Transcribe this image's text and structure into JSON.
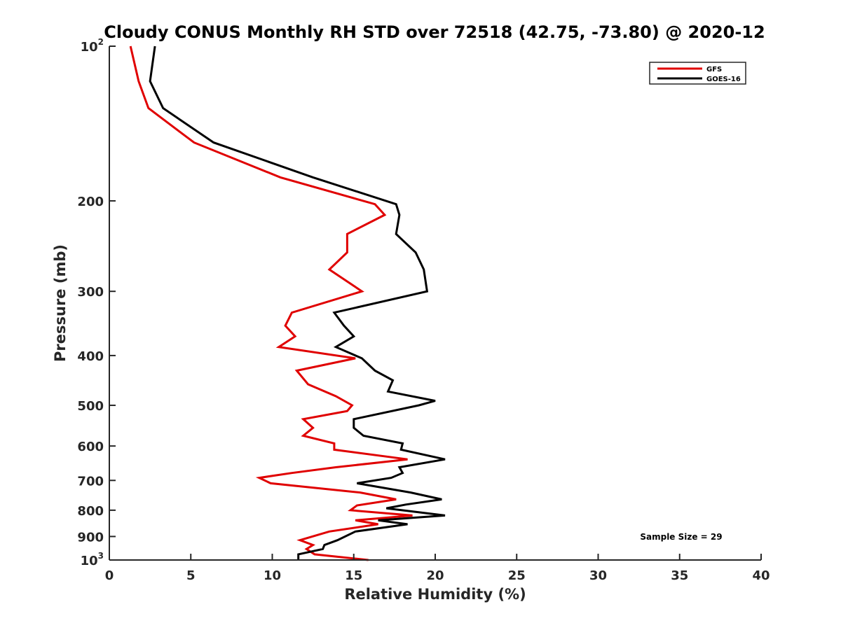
{
  "chart_data": {
    "type": "line",
    "title": "Cloudy CONUS Monthly RH STD over 72518 (42.75, -73.80) @ 2020-12",
    "xlabel": "Relative Humidity (%)",
    "ylabel": "Pressure (mb)",
    "xlim": [
      0,
      40
    ],
    "ylim": [
      100,
      1000
    ],
    "y_scale": "log",
    "y_reversed": true,
    "grid": false,
    "legend_position": "top-right",
    "x_ticks": [
      0,
      5,
      10,
      15,
      20,
      25,
      30,
      35,
      40
    ],
    "y_ticks": [
      {
        "value": 100,
        "base": "10",
        "exp": "2"
      },
      {
        "value": 200,
        "base": "200",
        "exp": ""
      },
      {
        "value": 300,
        "base": "300",
        "exp": ""
      },
      {
        "value": 400,
        "base": "400",
        "exp": ""
      },
      {
        "value": 500,
        "base": "500",
        "exp": ""
      },
      {
        "value": 600,
        "base": "600",
        "exp": ""
      },
      {
        "value": 700,
        "base": "700",
        "exp": ""
      },
      {
        "value": 800,
        "base": "800",
        "exp": ""
      },
      {
        "value": 900,
        "base": "900",
        "exp": ""
      },
      {
        "value": 1000,
        "base": "10",
        "exp": "3"
      }
    ],
    "annotation": "Sample Size = 29",
    "series": [
      {
        "name": "GFS",
        "color": "#e00000",
        "points": [
          [
            1.3,
            100
          ],
          [
            1.8,
            117
          ],
          [
            2.4,
            132
          ],
          [
            5.2,
            154
          ],
          [
            10.5,
            180
          ],
          [
            16.3,
            203
          ],
          [
            16.9,
            213
          ],
          [
            14.6,
            232
          ],
          [
            14.6,
            252
          ],
          [
            13.5,
            272
          ],
          [
            15.5,
            300
          ],
          [
            11.2,
            330
          ],
          [
            10.8,
            350
          ],
          [
            11.4,
            367
          ],
          [
            10.4,
            385
          ],
          [
            15.1,
            405
          ],
          [
            11.5,
            428
          ],
          [
            12.2,
            455
          ],
          [
            13.9,
            480
          ],
          [
            14.9,
            500
          ],
          [
            14.6,
            513
          ],
          [
            11.9,
            532
          ],
          [
            12.5,
            553
          ],
          [
            11.9,
            573
          ],
          [
            13.8,
            593
          ],
          [
            13.8,
            610
          ],
          [
            18.3,
            637
          ],
          [
            13.9,
            660
          ],
          [
            11.2,
            677
          ],
          [
            9.2,
            692
          ],
          [
            9.9,
            709
          ],
          [
            15.4,
            739
          ],
          [
            17.6,
            762
          ],
          [
            15.2,
            783
          ],
          [
            14.8,
            800
          ],
          [
            18.6,
            819
          ],
          [
            15.1,
            837
          ],
          [
            16.5,
            852
          ],
          [
            13.5,
            880
          ],
          [
            11.7,
            915
          ],
          [
            12.5,
            935
          ],
          [
            12.1,
            952
          ],
          [
            12.6,
            975
          ],
          [
            15.9,
            1000
          ]
        ]
      },
      {
        "name": "GOES-16",
        "color": "#000000",
        "points": [
          [
            2.8,
            100
          ],
          [
            2.5,
            117
          ],
          [
            3.3,
            132
          ],
          [
            6.4,
            154
          ],
          [
            12.5,
            180
          ],
          [
            17.6,
            203
          ],
          [
            17.8,
            213
          ],
          [
            17.6,
            232
          ],
          [
            18.8,
            252
          ],
          [
            19.3,
            272
          ],
          [
            19.5,
            300
          ],
          [
            13.8,
            330
          ],
          [
            14.4,
            350
          ],
          [
            15.0,
            367
          ],
          [
            13.9,
            385
          ],
          [
            15.5,
            405
          ],
          [
            16.3,
            428
          ],
          [
            17.4,
            447
          ],
          [
            17.1,
            470
          ],
          [
            20.0,
            490
          ],
          [
            19.0,
            500
          ],
          [
            15.0,
            532
          ],
          [
            15.0,
            553
          ],
          [
            15.6,
            573
          ],
          [
            18.0,
            593
          ],
          [
            17.9,
            610
          ],
          [
            20.6,
            637
          ],
          [
            17.8,
            660
          ],
          [
            18.0,
            677
          ],
          [
            17.3,
            692
          ],
          [
            15.2,
            709
          ],
          [
            18.5,
            739
          ],
          [
            20.4,
            762
          ],
          [
            18.2,
            780
          ],
          [
            17.0,
            793
          ],
          [
            20.6,
            819
          ],
          [
            16.5,
            837
          ],
          [
            18.3,
            852
          ],
          [
            15.1,
            880
          ],
          [
            14.0,
            915
          ],
          [
            13.2,
            935
          ],
          [
            13.1,
            952
          ],
          [
            11.6,
            975
          ],
          [
            11.6,
            1000
          ]
        ]
      }
    ]
  }
}
